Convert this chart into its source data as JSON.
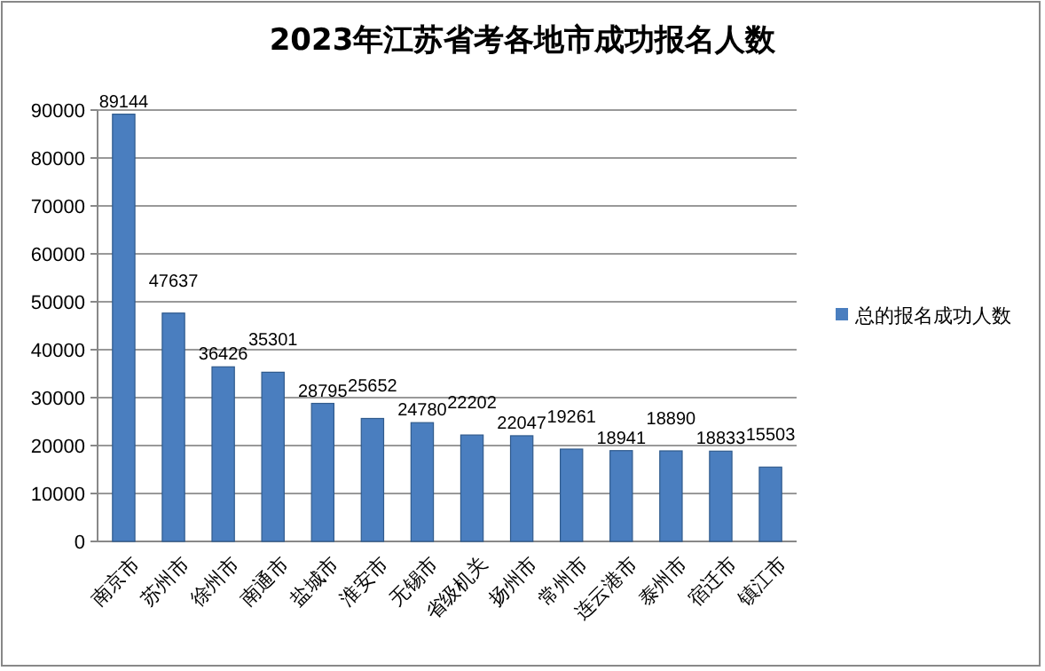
{
  "chart_data": {
    "type": "bar",
    "title": "2023年江苏省考各地市成功报名人数",
    "categories": [
      "南京市",
      "苏州市",
      "徐州市",
      "南通市",
      "盐城市",
      "淮安市",
      "无锡市",
      "省级机关",
      "扬州市",
      "常州市",
      "连云港市",
      "泰州市",
      "宿迁市",
      "镇江市"
    ],
    "series": [
      {
        "name": "总的报名成功人数",
        "color": "#4a7ebf",
        "values": [
          89144,
          47637,
          36426,
          35301,
          28795,
          25652,
          24780,
          22202,
          22047,
          19261,
          18941,
          18890,
          18833,
          15503
        ]
      }
    ],
    "ylim": [
      0,
      90000
    ],
    "yticks": [
      0,
      10000,
      20000,
      30000,
      40000,
      50000,
      60000,
      70000,
      80000,
      90000
    ],
    "grid": "y",
    "legend": "right",
    "data_labels": true
  }
}
